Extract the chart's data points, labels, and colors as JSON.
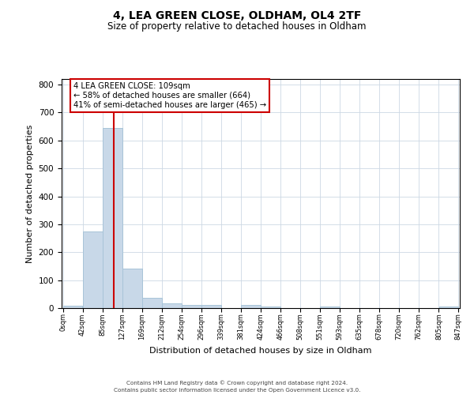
{
  "title": "4, LEA GREEN CLOSE, OLDHAM, OL4 2TF",
  "subtitle": "Size of property relative to detached houses in Oldham",
  "xlabel": "Distribution of detached houses by size in Oldham",
  "ylabel": "Number of detached properties",
  "bar_color": "#c8d8e8",
  "bar_edge_color": "#a8c4d8",
  "background_color": "#ffffff",
  "grid_color": "#ccd8e4",
  "vline_x": 109,
  "vline_color": "#cc0000",
  "bin_edges": [
    0,
    42,
    85,
    127,
    169,
    212,
    254,
    296,
    339,
    381,
    424,
    466,
    508,
    551,
    593,
    635,
    678,
    720,
    762,
    805,
    847
  ],
  "bar_heights": [
    8,
    275,
    644,
    140,
    38,
    18,
    11,
    10,
    0,
    11,
    6,
    0,
    0,
    6,
    0,
    0,
    0,
    0,
    0,
    6
  ],
  "ylim": [
    0,
    820
  ],
  "yticks": [
    0,
    100,
    200,
    300,
    400,
    500,
    600,
    700,
    800
  ],
  "annotation_title": "4 LEA GREEN CLOSE: 109sqm",
  "annotation_line1": "← 58% of detached houses are smaller (664)",
  "annotation_line2": "41% of semi-detached houses are larger (465) →",
  "annotation_box_color": "#ffffff",
  "annotation_box_edge_color": "#cc0000",
  "footer_line1": "Contains HM Land Registry data © Crown copyright and database right 2024.",
  "footer_line2": "Contains public sector information licensed under the Open Government Licence v3.0."
}
